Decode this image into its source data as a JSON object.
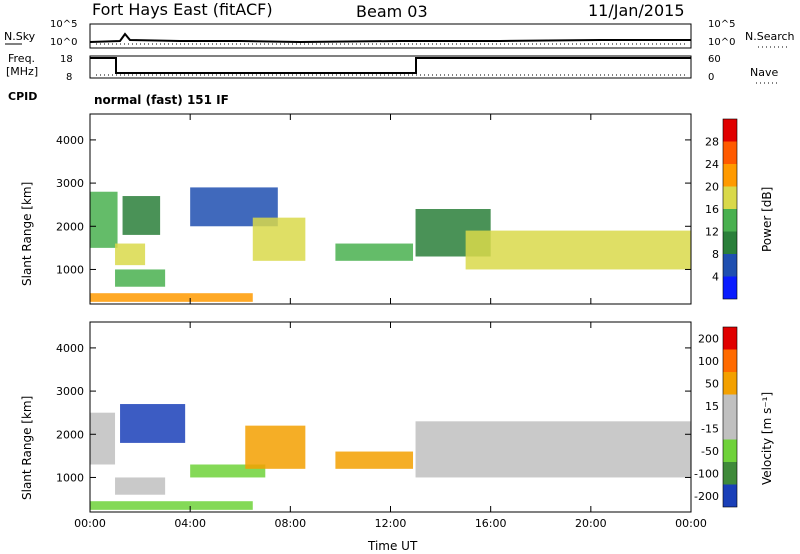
{
  "header": {
    "station": "Fort Hays East (fitACF)",
    "beam": "Beam 03",
    "date": "11/Jan/2015"
  },
  "top_panel": {
    "left_label": "N.Sky",
    "left_ticks": [
      "10^5",
      "10^0"
    ],
    "right_ticks": [
      "10^5",
      "10^0"
    ],
    "right_label": "N.Search"
  },
  "freq_panel": {
    "left_label_1": "Freq.",
    "left_label_2": "[MHz]",
    "left_ticks": [
      "18",
      "8"
    ],
    "right_ticks": [
      "60",
      "0"
    ],
    "right_label": "Nave"
  },
  "cpid": {
    "label": "CPID",
    "mode": "normal (fast) 151 IF"
  },
  "colors": {
    "power_scale": [
      "#0a1cff",
      "#1f4fb0",
      "#2a7f3a",
      "#49b04f",
      "#d9d94a",
      "#ff9a00",
      "#ff5a00",
      "#e00000"
    ],
    "velocity_scale": [
      "#1a3fb8",
      "#3f8a3a",
      "#6fd23a",
      "#c0c0c0",
      "#c0c0c0",
      "#f3a000",
      "#ff6a00",
      "#e00000"
    ]
  },
  "chart_data": [
    {
      "type": "heatmap",
      "name": "power",
      "ylabel": "Slant Range [km]",
      "yticks": [
        "1000",
        "2000",
        "3000",
        "4000"
      ],
      "ylim": [
        200,
        4600
      ],
      "xlabel": "Time UT",
      "xticks": [
        "00:00",
        "04:00",
        "08:00",
        "12:00",
        "16:00",
        "20:00",
        "00:00"
      ],
      "xlim": [
        0,
        24
      ],
      "colorbar_label": "Power [dB]",
      "colorbar_ticks": [
        "4",
        "8",
        "12",
        "16",
        "20",
        "24",
        "28"
      ],
      "bands": [
        {
          "t0": 0.0,
          "t1": 1.1,
          "r0": 1500,
          "r1": 2800,
          "level": 3
        },
        {
          "t0": 1.0,
          "t1": 2.2,
          "r0": 1100,
          "r1": 1600,
          "level": 4
        },
        {
          "t0": 1.3,
          "t1": 2.8,
          "r0": 1800,
          "r1": 2700,
          "level": 2
        },
        {
          "t0": 1.0,
          "t1": 3.0,
          "r0": 600,
          "r1": 1000,
          "level": 3
        },
        {
          "t0": 0.0,
          "t1": 6.5,
          "r0": 250,
          "r1": 450,
          "level": 5
        },
        {
          "t0": 4.0,
          "t1": 7.5,
          "r0": 2000,
          "r1": 2900,
          "level": 1
        },
        {
          "t0": 6.5,
          "t1": 8.6,
          "r0": 1200,
          "r1": 2200,
          "level": 4
        },
        {
          "t0": 9.8,
          "t1": 12.9,
          "r0": 1200,
          "r1": 1600,
          "level": 3
        },
        {
          "t0": 13.0,
          "t1": 16.0,
          "r0": 1300,
          "r1": 2400,
          "level": 2
        },
        {
          "t0": 15.0,
          "t1": 24.0,
          "r0": 1000,
          "r1": 1900,
          "level": 4
        }
      ]
    },
    {
      "type": "heatmap",
      "name": "velocity",
      "ylabel": "Slant Range [km]",
      "yticks": [
        "1000",
        "2000",
        "3000",
        "4000"
      ],
      "ylim": [
        200,
        4600
      ],
      "xlabel": "Time UT",
      "xticks": [
        "00:00",
        "04:00",
        "08:00",
        "12:00",
        "16:00",
        "20:00",
        "00:00"
      ],
      "xlim": [
        0,
        24
      ],
      "colorbar_label": "Velocity [m s⁻¹]",
      "colorbar_ticks": [
        "200",
        "100",
        "50",
        "15",
        "-15",
        "-50",
        "-100",
        "-200"
      ],
      "bands": [
        {
          "t0": 0.0,
          "t1": 1.0,
          "r0": 1300,
          "r1": 2500,
          "level": 3
        },
        {
          "t0": 1.2,
          "t1": 3.8,
          "r0": 1800,
          "r1": 2700,
          "level": 0
        },
        {
          "t0": 1.0,
          "t1": 3.0,
          "r0": 600,
          "r1": 1000,
          "level": 3
        },
        {
          "t0": 0.0,
          "t1": 6.5,
          "r0": 250,
          "r1": 450,
          "level": 2
        },
        {
          "t0": 4.0,
          "t1": 7.0,
          "r0": 1000,
          "r1": 1300,
          "level": 2
        },
        {
          "t0": 6.2,
          "t1": 8.6,
          "r0": 1200,
          "r1": 2200,
          "level": 5
        },
        {
          "t0": 9.8,
          "t1": 12.9,
          "r0": 1200,
          "r1": 1600,
          "level": 5
        },
        {
          "t0": 13.0,
          "t1": 24.0,
          "r0": 1000,
          "r1": 2300,
          "level": 3
        }
      ]
    }
  ],
  "xaxis_title": "Time UT"
}
